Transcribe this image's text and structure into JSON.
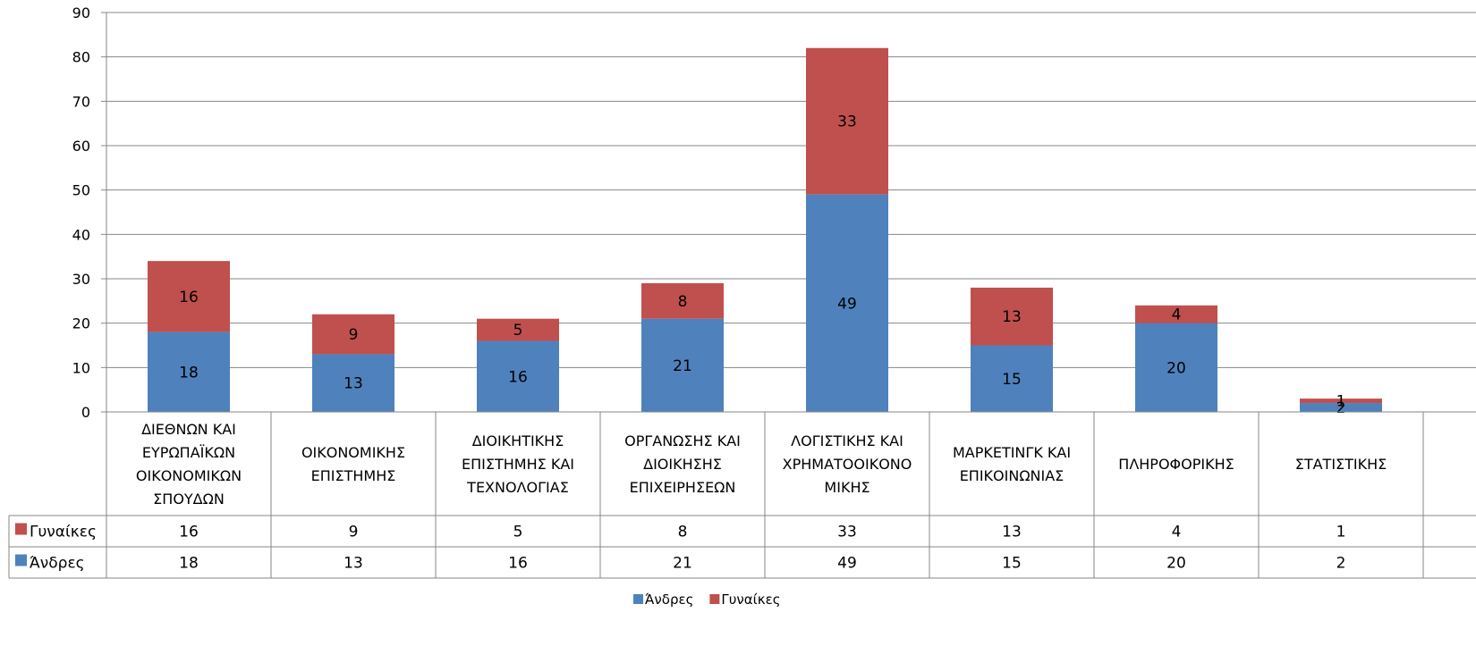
{
  "chart_data": {
    "type": "bar",
    "stacked": true,
    "categories": [
      "ΔΙΕΘΝΩΝ ΚΑΙ ΕΥΡΩΠΑΪΚΩΝ ΟΙΚΟΝΟΜΙΚΩΝ ΣΠΟΥΔΩΝ",
      "ΟΙΚΟΝΟΜΙΚΗΣ ΕΠΙΣΤΗΜΗΣ",
      "ΔΙΟΙΚΗΤΙΚΗΣ ΕΠΙΣΤΗΜΗΣ ΚΑΙ ΤΕΧΝΟΛΟΓΙΑΣ",
      "ΟΡΓΑΝΩΣΗΣ ΚΑΙ ΔΙΟΙΚΗΣΗΣ ΕΠΙΧΕΙΡΗΣΕΩΝ",
      "ΛΟΓΙΣΤΙΚΗΣ ΚΑΙ ΧΡΗΜΑΤΟΟΙΚΟΝΟΜΙΚΗΣ",
      "ΜΑΡΚΕΤΙΝΓΚ ΚΑΙ ΕΠΙΚΟΙΝΩΝΙΑΣ",
      "ΠΛΗΡΟΦΟΡΙΚΗΣ",
      "ΣΤΑΤΙΣΤΙΚΗΣ"
    ],
    "category_lines": [
      [
        "ΔΙΕΘΝΩΝ ΚΑΙ",
        "ΕΥΡΩΠΑΪΚΩΝ",
        "ΟΙΚΟΝΟΜΙΚΩΝ",
        "ΣΠΟΥΔΩΝ"
      ],
      [
        "ΟΙΚΟΝΟΜΙΚΗΣ",
        "ΕΠΙΣΤΗΜΗΣ"
      ],
      [
        "ΔΙΟΙΚΗΤΙΚΗΣ",
        "ΕΠΙΣΤΗΜΗΣ ΚΑΙ",
        "ΤΕΧΝΟΛΟΓΙΑΣ"
      ],
      [
        "ΟΡΓΑΝΩΣΗΣ ΚΑΙ",
        "ΔΙΟΙΚΗΣΗΣ",
        "ΕΠΙΧΕΙΡΗΣΕΩΝ"
      ],
      [
        "ΛΟΓΙΣΤΙΚΗΣ ΚΑΙ",
        "ΧΡΗΜΑΤΟΟΙΚΟΝΟ",
        "ΜΙΚΗΣ"
      ],
      [
        "ΜΑΡΚΕΤΙΝΓΚ ΚΑΙ",
        "ΕΠΙΚΟΙΝΩΝΙΑΣ"
      ],
      [
        "ΠΛΗΡΟΦΟΡΙΚΗΣ"
      ],
      [
        "ΣΤΑΤΙΣΤΙΚΗΣ"
      ]
    ],
    "series": [
      {
        "name": "Άνδρες",
        "color": "#4f81bd",
        "values": [
          18,
          13,
          16,
          21,
          49,
          15,
          20,
          2
        ]
      },
      {
        "name": "Γυναίκες",
        "color": "#c0504d",
        "values": [
          16,
          9,
          5,
          8,
          33,
          13,
          4,
          1
        ]
      }
    ],
    "table_row_order": [
      "Γυναίκες",
      "Άνδρες"
    ],
    "ylim": [
      0,
      90
    ],
    "ytick_step": 10,
    "grid": true,
    "data_table": true,
    "legend_position": "bottom"
  }
}
